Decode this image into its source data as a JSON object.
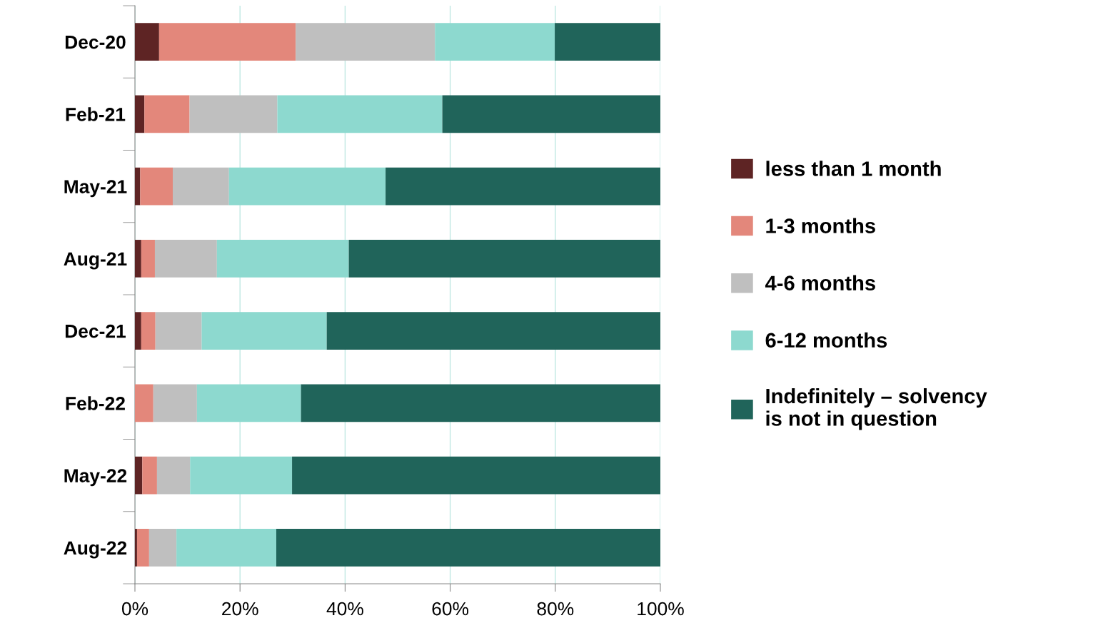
{
  "chart_data": {
    "type": "bar",
    "orientation": "horizontal",
    "stacked": true,
    "categories": [
      "Dec-20",
      "Feb-21",
      "May-21",
      "Aug-21",
      "Dec-21",
      "Feb-22",
      "May-22",
      "Aug-22"
    ],
    "series": [
      {
        "name": "less than 1 month",
        "color": "#5e2424",
        "values": [
          4.6,
          1.8,
          1.0,
          1.2,
          1.2,
          0,
          1.4,
          0.4
        ]
      },
      {
        "name": "1-3 months",
        "color": "#e3877b",
        "values": [
          26.0,
          8.6,
          6.2,
          2.6,
          2.7,
          3.5,
          2.8,
          2.3
        ]
      },
      {
        "name": "4-6 months",
        "color": "#bfbfbf",
        "values": [
          26.5,
          16.7,
          10.7,
          11.8,
          8.8,
          8.3,
          6.3,
          5.2
        ]
      },
      {
        "name": "6-12 months",
        "color": "#8dd9cf",
        "values": [
          22.8,
          31.4,
          29.8,
          25.1,
          23.8,
          19.8,
          19.4,
          19.0
        ]
      },
      {
        "name": "Indefinitely – solvency\nis not in question",
        "color": "#20645a",
        "values": [
          20.1,
          41.5,
          52.3,
          59.3,
          63.5,
          68.4,
          70.1,
          73.1
        ]
      }
    ],
    "xlim": [
      0,
      100
    ],
    "xticks": [
      {
        "value": 0,
        "label": "0%"
      },
      {
        "value": 20,
        "label": "20%"
      },
      {
        "value": 40,
        "label": "40%"
      },
      {
        "value": 60,
        "label": "60%"
      },
      {
        "value": 80,
        "label": "80%"
      },
      {
        "value": 100,
        "label": "100%"
      }
    ],
    "grid": "x",
    "legend": "right"
  }
}
